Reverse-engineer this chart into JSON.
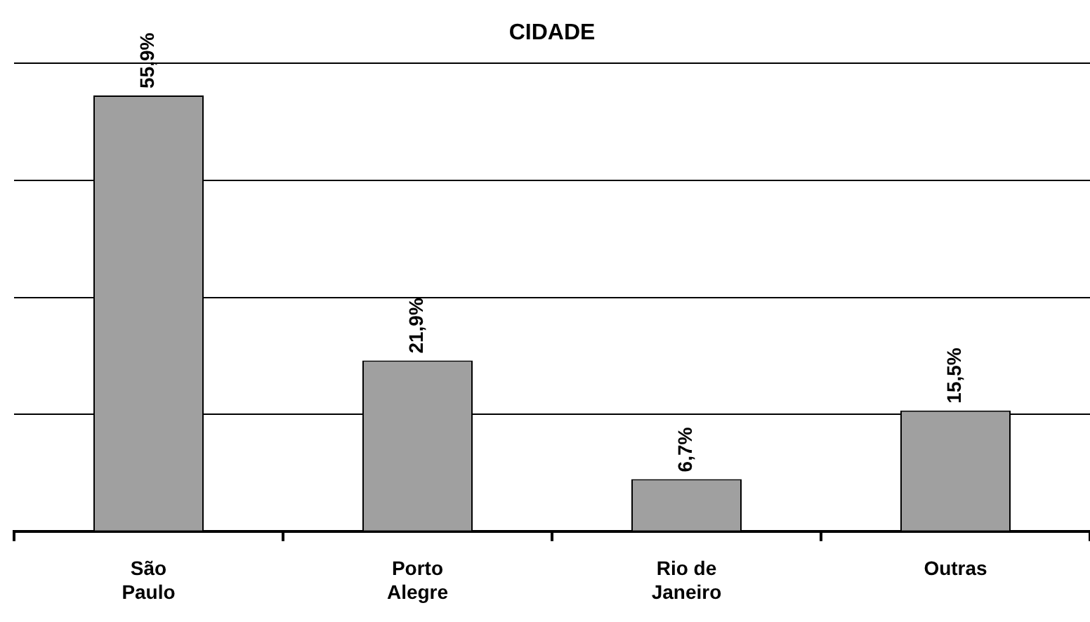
{
  "chart_data": {
    "type": "bar",
    "title": "CIDADE",
    "categories": [
      "São\nPaulo",
      "Porto\nAlegre",
      "Rio de\nJaneiro",
      "Outras"
    ],
    "values": [
      55.9,
      21.9,
      6.7,
      15.5
    ],
    "value_labels": [
      "55,9%",
      "21,9%",
      "6,7%",
      "15,5%"
    ],
    "color": "#a0a0a0",
    "ylim": [
      0,
      60
    ],
    "yticks": [
      {
        "value": 0,
        "label": null
      },
      {
        "value": 15,
        "label": null
      },
      {
        "value": 30,
        "label": null
      },
      {
        "value": 45,
        "label": null
      },
      {
        "value": 60,
        "label": null
      }
    ],
    "grid": "y",
    "tick_labels": "x",
    "legend": false
  }
}
